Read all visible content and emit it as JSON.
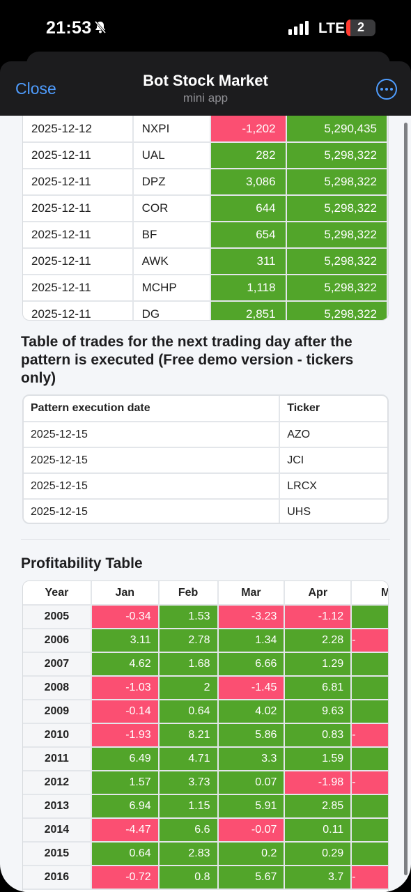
{
  "status_bar": {
    "time": "21:53",
    "network": "LTE",
    "battery": "2"
  },
  "header": {
    "close_label": "Close",
    "title": "Bot Stock Market",
    "subtitle": "mini app"
  },
  "trades": [
    [
      "2025-12-12",
      "NXPI",
      "-1,202",
      "5,290,435"
    ],
    [
      "2025-12-11",
      "UAL",
      "282",
      "5,298,322"
    ],
    [
      "2025-12-11",
      "DPZ",
      "3,086",
      "5,298,322"
    ],
    [
      "2025-12-11",
      "COR",
      "644",
      "5,298,322"
    ],
    [
      "2025-12-11",
      "BF",
      "654",
      "5,298,322"
    ],
    [
      "2025-12-11",
      "AWK",
      "311",
      "5,298,322"
    ],
    [
      "2025-12-11",
      "MCHP",
      "1,118",
      "5,298,322"
    ],
    [
      "2025-12-11",
      "DG",
      "2,851",
      "5,298,322"
    ]
  ],
  "next_day": {
    "title": "Table of trades for the next trading day after the pattern is executed (Free demo version - tickers only)",
    "headers": [
      "Pattern execution date",
      "Ticker"
    ],
    "rows": [
      [
        "2025-12-15",
        "AZO"
      ],
      [
        "2025-12-15",
        "JCI"
      ],
      [
        "2025-12-15",
        "LRCX"
      ],
      [
        "2025-12-15",
        "UHS"
      ]
    ]
  },
  "profitability": {
    "title": "Profitability Table",
    "headers": [
      "Year",
      "Jan",
      "Feb",
      "Mar",
      "Apr",
      "Ma"
    ],
    "rows": [
      [
        "2005",
        "-0.34",
        "1.53",
        "-3.23",
        "-1.12",
        ""
      ],
      [
        "2006",
        "3.11",
        "2.78",
        "1.34",
        "2.28",
        "-"
      ],
      [
        "2007",
        "4.62",
        "1.68",
        "6.66",
        "1.29",
        ""
      ],
      [
        "2008",
        "-1.03",
        "2",
        "-1.45",
        "6.81",
        ""
      ],
      [
        "2009",
        "-0.14",
        "0.64",
        "4.02",
        "9.63",
        ""
      ],
      [
        "2010",
        "-1.93",
        "8.21",
        "5.86",
        "0.83",
        "-"
      ],
      [
        "2011",
        "6.49",
        "4.71",
        "3.3",
        "1.59",
        ""
      ],
      [
        "2012",
        "1.57",
        "3.73",
        "0.07",
        "-1.98",
        "-"
      ],
      [
        "2013",
        "6.94",
        "1.15",
        "5.91",
        "2.85",
        ""
      ],
      [
        "2014",
        "-4.47",
        "6.6",
        "-0.07",
        "0.11",
        ""
      ],
      [
        "2015",
        "0.64",
        "2.83",
        "0.2",
        "0.29",
        ""
      ],
      [
        "2016",
        "-0.72",
        "0.8",
        "5.67",
        "3.7",
        "-"
      ]
    ],
    "may_sign": [
      "pos",
      "neg",
      "pos",
      "pos",
      "pos",
      "neg",
      "pos",
      "neg",
      "pos",
      "pos",
      "pos",
      "neg"
    ]
  },
  "colors": {
    "positive": "#52a52a",
    "negative": "#fb4f72",
    "accent": "#4f9dff"
  }
}
